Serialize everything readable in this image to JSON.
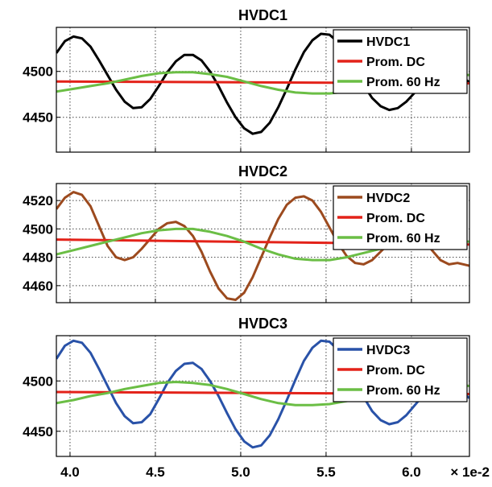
{
  "chart_data": [
    {
      "type": "line",
      "title": "HVDC1",
      "xlabel": "",
      "ylabel": "",
      "xlim": [
        3.92,
        6.34
      ],
      "ylim": [
        4412,
        4548
      ],
      "grid": true,
      "legend": "top-right",
      "yticks": [
        4450,
        4500
      ],
      "series": [
        {
          "name": "HVDC1",
          "color": "#000000",
          "x": [
            3.92,
            3.97,
            4.02,
            4.07,
            4.12,
            4.17,
            4.22,
            4.27,
            4.32,
            4.37,
            4.42,
            4.47,
            4.52,
            4.57,
            4.62,
            4.67,
            4.72,
            4.77,
            4.82,
            4.87,
            4.92,
            4.97,
            5.02,
            5.07,
            5.12,
            5.17,
            5.22,
            5.27,
            5.32,
            5.37,
            5.42,
            5.47,
            5.52,
            5.57,
            5.62,
            5.67,
            5.72,
            5.77,
            5.82,
            5.87,
            5.92,
            5.97,
            6.02,
            6.07,
            6.12,
            6.17,
            6.22,
            6.27,
            6.34
          ],
          "y": [
            4520,
            4533,
            4538,
            4536,
            4527,
            4512,
            4496,
            4480,
            4467,
            4460,
            4461,
            4470,
            4484,
            4499,
            4511,
            4518,
            4518,
            4512,
            4500,
            4484,
            4466,
            4450,
            4438,
            4432,
            4434,
            4444,
            4461,
            4481,
            4502,
            4521,
            4534,
            4541,
            4540,
            4532,
            4518,
            4501,
            4485,
            4471,
            4462,
            4458,
            4460,
            4467,
            4477,
            4488,
            4497,
            4503,
            4503,
            4498,
            4488
          ]
        },
        {
          "name": "Prom. DC",
          "color": "#e32219",
          "x": [
            3.92,
            6.34
          ],
          "y": [
            4489,
            4487
          ]
        },
        {
          "name": "Prom. 60 Hz",
          "color": "#6bbe45",
          "x": [
            3.92,
            4.02,
            4.12,
            4.22,
            4.32,
            4.42,
            4.52,
            4.62,
            4.72,
            4.82,
            4.92,
            5.02,
            5.12,
            5.22,
            5.32,
            5.42,
            5.52,
            5.62,
            5.72,
            5.82,
            5.92,
            6.02,
            6.12,
            6.22,
            6.34
          ],
          "y": [
            4478,
            4481,
            4484,
            4487,
            4491,
            4495,
            4498,
            4499,
            4499,
            4497,
            4494,
            4489,
            4484,
            4480,
            4477,
            4476,
            4476,
            4478,
            4481,
            4485,
            4489,
            4493,
            4496,
            4497,
            4496
          ]
        }
      ]
    },
    {
      "type": "line",
      "title": "HVDC2",
      "xlabel": "",
      "ylabel": "",
      "xlim": [
        3.92,
        6.34
      ],
      "ylim": [
        4448,
        4532
      ],
      "grid": true,
      "legend": "top-right",
      "yticks": [
        4460,
        4480,
        4500,
        4520
      ],
      "series": [
        {
          "name": "HVDC2",
          "color": "#9c4a1e",
          "x": [
            3.92,
            3.97,
            4.02,
            4.07,
            4.12,
            4.17,
            4.22,
            4.27,
            4.32,
            4.37,
            4.42,
            4.47,
            4.52,
            4.57,
            4.62,
            4.67,
            4.72,
            4.77,
            4.82,
            4.87,
            4.92,
            4.97,
            5.02,
            5.07,
            5.12,
            5.17,
            5.22,
            5.27,
            5.32,
            5.37,
            5.42,
            5.47,
            5.52,
            5.57,
            5.62,
            5.67,
            5.72,
            5.77,
            5.82,
            5.87,
            5.92,
            5.97,
            6.02,
            6.07,
            6.12,
            6.17,
            6.22,
            6.27,
            6.34
          ],
          "y": [
            4514,
            4522,
            4526,
            4524,
            4516,
            4502,
            4488,
            4480,
            4478,
            4480,
            4486,
            4493,
            4500,
            4504,
            4505,
            4502,
            4495,
            4484,
            4470,
            4458,
            4451,
            4450,
            4455,
            4466,
            4480,
            4494,
            4507,
            4517,
            4522,
            4523,
            4520,
            4512,
            4501,
            4490,
            4481,
            4476,
            4475,
            4478,
            4484,
            4490,
            4496,
            4499,
            4498,
            4493,
            4485,
            4478,
            4475,
            4476,
            4474
          ]
        },
        {
          "name": "Prom. DC",
          "color": "#e32219",
          "x": [
            3.92,
            6.34
          ],
          "y": [
            4492.5,
            4489
          ]
        },
        {
          "name": "Prom. 60 Hz",
          "color": "#6bbe45",
          "x": [
            3.92,
            4.02,
            4.12,
            4.22,
            4.32,
            4.42,
            4.52,
            4.62,
            4.72,
            4.82,
            4.92,
            5.02,
            5.12,
            5.22,
            5.32,
            5.42,
            5.52,
            5.62,
            5.72,
            5.82,
            5.92,
            6.02,
            6.12,
            6.22,
            6.34
          ],
          "y": [
            4482,
            4485,
            4488,
            4491,
            4494,
            4497,
            4499,
            4500,
            4500,
            4498,
            4495,
            4491,
            4486,
            4482,
            4479,
            4478,
            4478,
            4480,
            4483,
            4486,
            4489,
            4491,
            4492,
            4492,
            4491
          ]
        }
      ]
    },
    {
      "type": "line",
      "title": "HVDC3",
      "xlabel": "",
      "ylabel": "",
      "xlim": [
        3.92,
        6.34
      ],
      "ylim": [
        4425,
        4545
      ],
      "xticks": [
        "4.0",
        "4.5",
        "5.0",
        "5.5",
        "6.0"
      ],
      "xtick_values": [
        4.0,
        4.5,
        5.0,
        5.5,
        6.0
      ],
      "x_multiplier": "× 1e-2",
      "grid": true,
      "legend": "top-right",
      "yticks": [
        4450,
        4500
      ],
      "series": [
        {
          "name": "HVDC3",
          "color": "#2952a8",
          "x": [
            3.92,
            3.97,
            4.02,
            4.07,
            4.12,
            4.17,
            4.22,
            4.27,
            4.32,
            4.37,
            4.42,
            4.47,
            4.52,
            4.57,
            4.62,
            4.67,
            4.72,
            4.77,
            4.82,
            4.87,
            4.92,
            4.97,
            5.02,
            5.07,
            5.12,
            5.17,
            5.22,
            5.27,
            5.32,
            5.37,
            5.42,
            5.47,
            5.52,
            5.57,
            5.62,
            5.67,
            5.72,
            5.77,
            5.82,
            5.87,
            5.92,
            5.97,
            6.02,
            6.07,
            6.12,
            6.17,
            6.22,
            6.27,
            6.34
          ],
          "y": [
            4522,
            4535,
            4540,
            4538,
            4528,
            4512,
            4495,
            4478,
            4465,
            4458,
            4459,
            4467,
            4482,
            4498,
            4510,
            4517,
            4518,
            4512,
            4500,
            4485,
            4468,
            4452,
            4440,
            4434,
            4436,
            4446,
            4462,
            4481,
            4501,
            4520,
            4533,
            4540,
            4539,
            4531,
            4517,
            4500,
            4484,
            4470,
            4461,
            4457,
            4459,
            4466,
            4476,
            4486,
            4494,
            4498,
            4497,
            4492,
            4483
          ]
        },
        {
          "name": "Prom. DC",
          "color": "#e32219",
          "x": [
            3.92,
            6.34
          ],
          "y": [
            4489,
            4487
          ]
        },
        {
          "name": "Prom. 60 Hz",
          "color": "#6bbe45",
          "x": [
            3.92,
            4.02,
            4.12,
            4.22,
            4.32,
            4.42,
            4.52,
            4.62,
            4.72,
            4.82,
            4.92,
            5.02,
            5.12,
            5.22,
            5.32,
            5.42,
            5.52,
            5.62,
            5.72,
            5.82,
            5.92,
            6.02,
            6.12,
            6.22,
            6.34
          ],
          "y": [
            4478,
            4481,
            4485,
            4488,
            4492,
            4495,
            4498,
            4499,
            4498,
            4496,
            4492,
            4487,
            4482,
            4478,
            4476,
            4476,
            4477,
            4480,
            4484,
            4488,
            4492,
            4495,
            4497,
            4497,
            4495
          ]
        }
      ]
    }
  ]
}
